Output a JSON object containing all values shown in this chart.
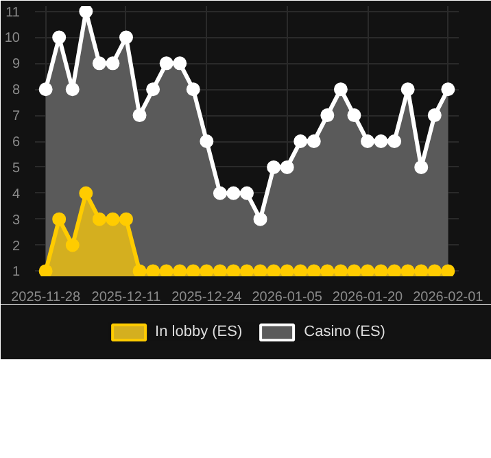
{
  "chart_data": {
    "type": "area",
    "categories": [
      "2025-11-28",
      null,
      null,
      null,
      null,
      null,
      "2025-12-11",
      null,
      null,
      null,
      null,
      null,
      "2025-12-24",
      null,
      null,
      null,
      null,
      null,
      "2026-01-05",
      null,
      null,
      null,
      null,
      null,
      "2026-01-20",
      null,
      null,
      null,
      null,
      null,
      "2026-02-01"
    ],
    "series": [
      {
        "name": "In lobby (ES)",
        "color": "#ffcc00",
        "values": [
          1,
          3,
          2,
          4,
          3,
          3,
          3,
          1,
          1,
          1,
          1,
          1,
          1,
          1,
          1,
          1,
          1,
          1,
          1,
          1,
          1,
          1,
          1,
          1,
          1,
          1,
          1,
          1,
          1,
          1,
          1
        ]
      },
      {
        "name": "Casino (ES)",
        "color": "#ffffff",
        "values": [
          8,
          10,
          8,
          11,
          9,
          9,
          10,
          7,
          8,
          9,
          9,
          8,
          6,
          4,
          4,
          4,
          3,
          5,
          5,
          6,
          6,
          7,
          8,
          7,
          6,
          6,
          6,
          8,
          5,
          7,
          8
        ]
      }
    ],
    "ylim": [
      0.8,
      11.2
    ],
    "yticks": [
      1,
      2,
      3,
      4,
      5,
      6,
      7,
      8,
      9,
      10,
      11
    ],
    "grid": true,
    "legend": "bottom",
    "marker": "circle"
  }
}
